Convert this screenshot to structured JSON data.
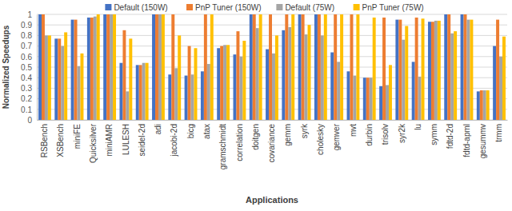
{
  "chart_data": {
    "type": "bar",
    "x_label": "Applications",
    "y_label": "Normalized Speedups",
    "categories": [
      "RSBench",
      "XSBench",
      "miniFE",
      "Quicksilver",
      "miniAMR",
      "LULESH",
      "seidel-2d",
      "adi",
      "jacobi-2d",
      "bicg",
      "atax",
      "gramschmidt",
      "correlation",
      "doitgen",
      "covariance",
      "gemm",
      "syrk",
      "cholesky",
      "gemver",
      "mvt",
      "durbin",
      "trisolv",
      "syr2k",
      "lu",
      "symm",
      "fdtd-2d",
      "fdtd-apml",
      "gesummv",
      "trmm"
    ],
    "series": [
      {
        "name": "Default (150W)",
        "color": "#4472c4",
        "values": [
          1,
          0.77,
          0.95,
          0.97,
          1,
          0.54,
          0.52,
          1,
          0.43,
          0.42,
          0.46,
          0.68,
          0.62,
          1,
          0.67,
          0.85,
          1,
          1,
          0.64,
          0.46,
          0.4,
          0.32,
          0.95,
          0.55,
          0.93,
          1,
          1,
          0.27,
          0.7
        ]
      },
      {
        "name": "PnP Tuner (150W)",
        "color": "#ed7d31",
        "values": [
          1,
          0.77,
          0.95,
          0.97,
          1,
          0.85,
          0.52,
          1,
          1,
          0.7,
          1,
          0.7,
          0.84,
          1,
          1,
          1,
          1,
          1,
          1,
          1,
          0.4,
          0.97,
          0.95,
          0.97,
          0.93,
          1,
          1,
          0.28,
          0.95
        ]
      },
      {
        "name": "Default (75W)",
        "color": "#a5a5a5",
        "values": [
          0.8,
          0.7,
          0.51,
          0.98,
          1,
          0.27,
          0.54,
          1,
          0.49,
          0.43,
          0.53,
          0.71,
          0.6,
          0.87,
          0.63,
          0.88,
          0.81,
          0.8,
          0.55,
          0.42,
          0.4,
          0.33,
          0.76,
          0.41,
          0.94,
          0.82,
          0.95,
          0.28,
          0.6
        ]
      },
      {
        "name": "PnP Tuner (75W)",
        "color": "#ffc000",
        "values": [
          0.8,
          0.83,
          0.63,
          1,
          1,
          0.77,
          0.54,
          1,
          0.8,
          0.68,
          1,
          0.71,
          0.75,
          1,
          0.8,
          1,
          0.9,
          1,
          1,
          1,
          0.97,
          0.52,
          0.89,
          0.96,
          0.94,
          0.84,
          0.95,
          0.28,
          0.79
        ]
      }
    ],
    "ylim": [
      0,
      1
    ],
    "yticks": [
      0,
      0.1,
      0.2,
      0.3,
      0.4,
      0.5,
      0.6,
      0.7,
      0.8,
      0.9,
      1
    ],
    "grid": true,
    "legend": "top"
  }
}
